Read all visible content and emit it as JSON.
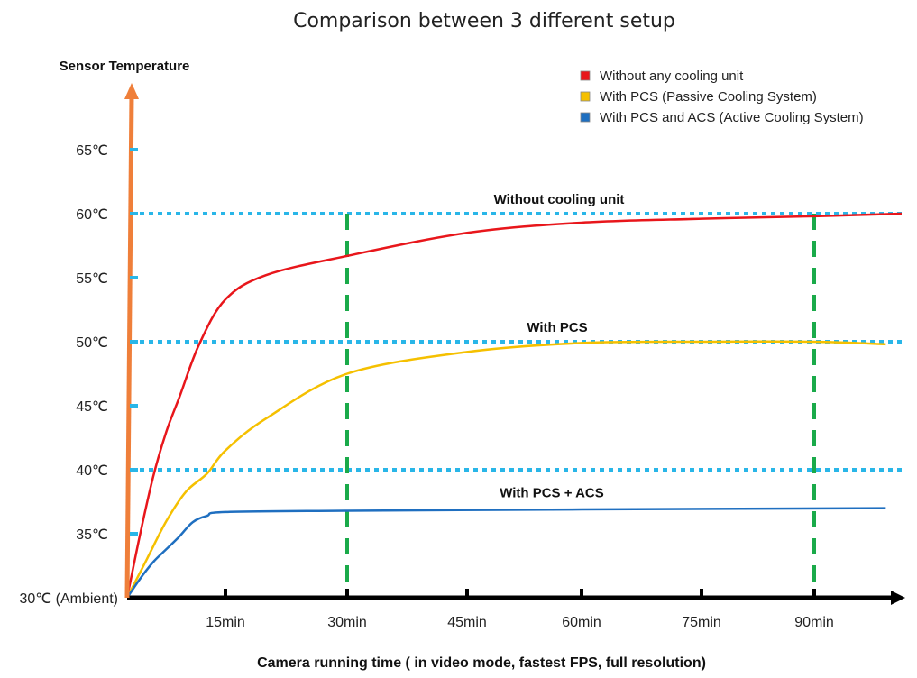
{
  "chart_data": {
    "type": "line",
    "title": "Comparison between 3 different setup",
    "ylabel": "Sensor Temperature",
    "xlabel": "Camera running time ( in video mode, fastest FPS, full resolution)",
    "xlim": [
      0,
      101
    ],
    "ylim": [
      30,
      68
    ],
    "x_ticks": [
      {
        "v": 15,
        "label": "15min"
      },
      {
        "v": 30,
        "label": "30min"
      },
      {
        "v": 45,
        "label": "45min"
      },
      {
        "v": 60,
        "label": "60min"
      },
      {
        "v": 75,
        "label": "75min"
      },
      {
        "v": 90,
        "label": "90min"
      }
    ],
    "y_ticks": [
      {
        "v": 30,
        "label": "30℃ (Ambient)"
      },
      {
        "v": 35,
        "label": "35℃"
      },
      {
        "v": 40,
        "label": "40℃"
      },
      {
        "v": 45,
        "label": "45℃"
      },
      {
        "v": 50,
        "label": "50℃"
      },
      {
        "v": 55,
        "label": "55℃"
      },
      {
        "v": 60,
        "label": "60℃"
      },
      {
        "v": 65,
        "label": "65℃"
      }
    ],
    "reference_lines": [
      {
        "y": 60,
        "label": "Without cooling unit",
        "color": "#29b6e8"
      },
      {
        "y": 50,
        "label": "With PCS",
        "color": "#29b6e8"
      },
      {
        "y": 40,
        "label": "With PCS + ACS",
        "color": "#29b6e8"
      }
    ],
    "vertical_markers": [
      {
        "x": 30,
        "color": "#1aaa4a"
      },
      {
        "x": 90,
        "color": "#1aaa4a"
      }
    ],
    "series": [
      {
        "name": "Without any cooling unit",
        "color": "#e8161b",
        "points": [
          [
            0,
            30
          ],
          [
            2,
            35
          ],
          [
            4,
            39.5
          ],
          [
            6,
            43
          ],
          [
            8,
            45.7
          ],
          [
            11,
            49.8
          ],
          [
            15,
            53.3
          ],
          [
            20,
            55.2
          ],
          [
            30,
            56.7
          ],
          [
            45,
            58.5
          ],
          [
            60,
            59.3
          ],
          [
            75,
            59.6
          ],
          [
            90,
            59.8
          ],
          [
            101,
            60
          ]
        ]
      },
      {
        "name": "With PCS (Passive Cooling System)",
        "color": "#f5c000",
        "points": [
          [
            0,
            30
          ],
          [
            3,
            33
          ],
          [
            6,
            36
          ],
          [
            9,
            38.3
          ],
          [
            12.2,
            39.7
          ],
          [
            15,
            41.5
          ],
          [
            20,
            44
          ],
          [
            30,
            47.5
          ],
          [
            45,
            49.2
          ],
          [
            60,
            49.9
          ],
          [
            75,
            50
          ],
          [
            90,
            50
          ],
          [
            99,
            49.8
          ]
        ]
      },
      {
        "name": "With PCS and ACS (Active Cooling System)",
        "color": "#1f6fc0",
        "points": [
          [
            0,
            30
          ],
          [
            2,
            31.5
          ],
          [
            4,
            32.8
          ],
          [
            6,
            33.8
          ],
          [
            8,
            34.8
          ],
          [
            10,
            35.9
          ],
          [
            12.2,
            36.4
          ],
          [
            15,
            36.7
          ],
          [
            30,
            36.8
          ],
          [
            60,
            36.9
          ],
          [
            99,
            37.0
          ]
        ]
      }
    ],
    "legend": "top-right",
    "axis_colors": {
      "y_axis": "#ef7f3a",
      "x_axis": "#000000",
      "y_tick_marks": "#29b6e8"
    },
    "grid": false
  }
}
